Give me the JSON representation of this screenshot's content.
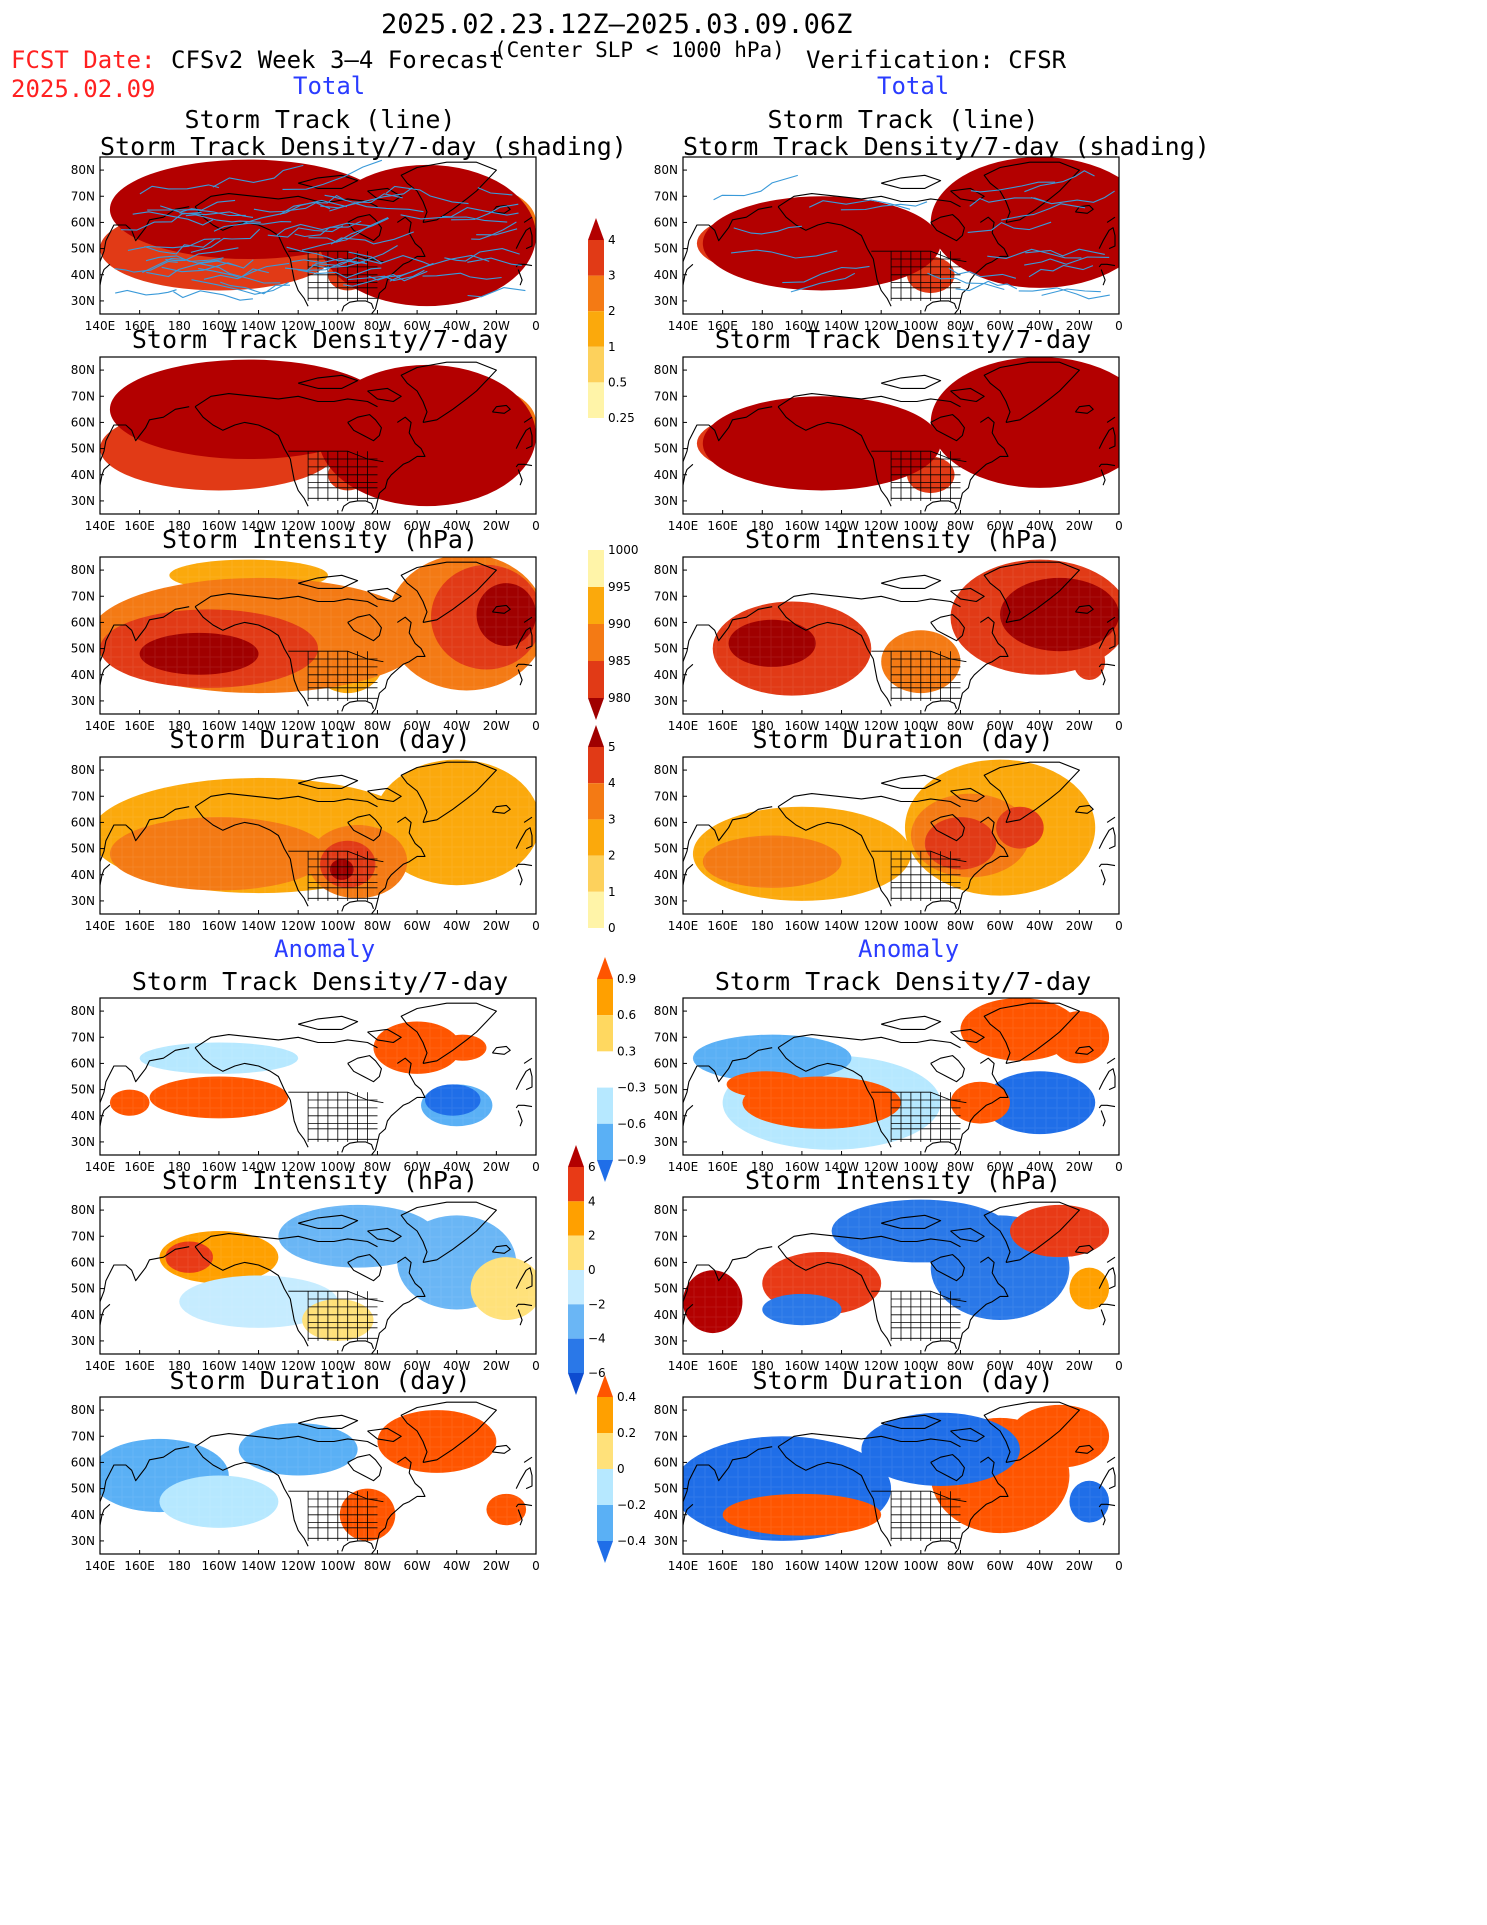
{
  "header": {
    "period": "2025.02.23.12Z–2025.03.09.06Z",
    "fcst_label": "FCST Date:",
    "fcst_date": "2025.02.09",
    "model_title": "CFSv2 Week 3–4 Forecast",
    "criterion": "(Center SLP < 1000 hPa)",
    "verification": "Verification: CFSR",
    "total_left": "Total",
    "total_right": "Total",
    "anomaly_left": "Anomaly",
    "anomaly_right": "Anomaly"
  },
  "panel_titles": {
    "track": "Storm Track (line)",
    "track_sub": "Storm Track Density/7-day (shading)",
    "density": "Storm Track Density/7-day",
    "intensity": "Storm Intensity (hPa)",
    "duration": "Storm Duration (day)"
  },
  "map_axes": {
    "lon_labels": [
      "140E",
      "160E",
      "180",
      "160W",
      "140W",
      "120W",
      "100W",
      "80W",
      "60W",
      "40W",
      "20W",
      "0"
    ],
    "lat_labels": [
      "80N",
      "70N",
      "60N",
      "50N",
      "40N",
      "30N"
    ],
    "lon_range": [
      140,
      360
    ],
    "lat_range": [
      25,
      85
    ]
  },
  "colorbars": {
    "density_total": {
      "levels": [
        "4",
        "3",
        "2",
        "1",
        "0.5",
        "0.25"
      ],
      "colors": [
        "#b30000",
        "#e13a16",
        "#f47a14",
        "#fba90c",
        "#fdd15c",
        "#fff4a8",
        "#ffffff"
      ]
    },
    "intensity_total": {
      "levels": [
        "1000",
        "995",
        "990",
        "985",
        "980"
      ],
      "colors": [
        "#ffffff",
        "#fff4a8",
        "#fba90c",
        "#f47a14",
        "#e13a16",
        "#a00000"
      ]
    },
    "duration_total": {
      "levels": [
        "5",
        "4",
        "3",
        "2",
        "1",
        "0"
      ],
      "colors": [
        "#a00000",
        "#e13a16",
        "#f47a14",
        "#fba90c",
        "#fdd15c",
        "#fff4a8",
        "#ffffff"
      ]
    },
    "density_anom": {
      "levels": [
        "0.9",
        "0.6",
        "0.3",
        "−0.3",
        "−0.6",
        "−0.9"
      ],
      "colors": [
        "#ff5500",
        "#ffa000",
        "#ffd860",
        "#ffffff",
        "#b6e8ff",
        "#5ab0f5",
        "#1f6ee8"
      ]
    },
    "intensity_anom": {
      "levels": [
        "6",
        "4",
        "2",
        "0",
        "−2",
        "−4",
        "−6"
      ],
      "colors": [
        "#b30000",
        "#e83a16",
        "#ffa000",
        "#ffe17a",
        "#c6ecff",
        "#6ab6f5",
        "#2a78e8",
        "#0d4cd0"
      ]
    },
    "duration_anom": {
      "levels": [
        "0.4",
        "0.2",
        "0",
        "−0.2",
        "−0.4"
      ],
      "colors": [
        "#ff5500",
        "#ffa000",
        "#ffe17a",
        "#b6e8ff",
        "#5ab0f5",
        "#1f6ee8"
      ]
    }
  }
}
